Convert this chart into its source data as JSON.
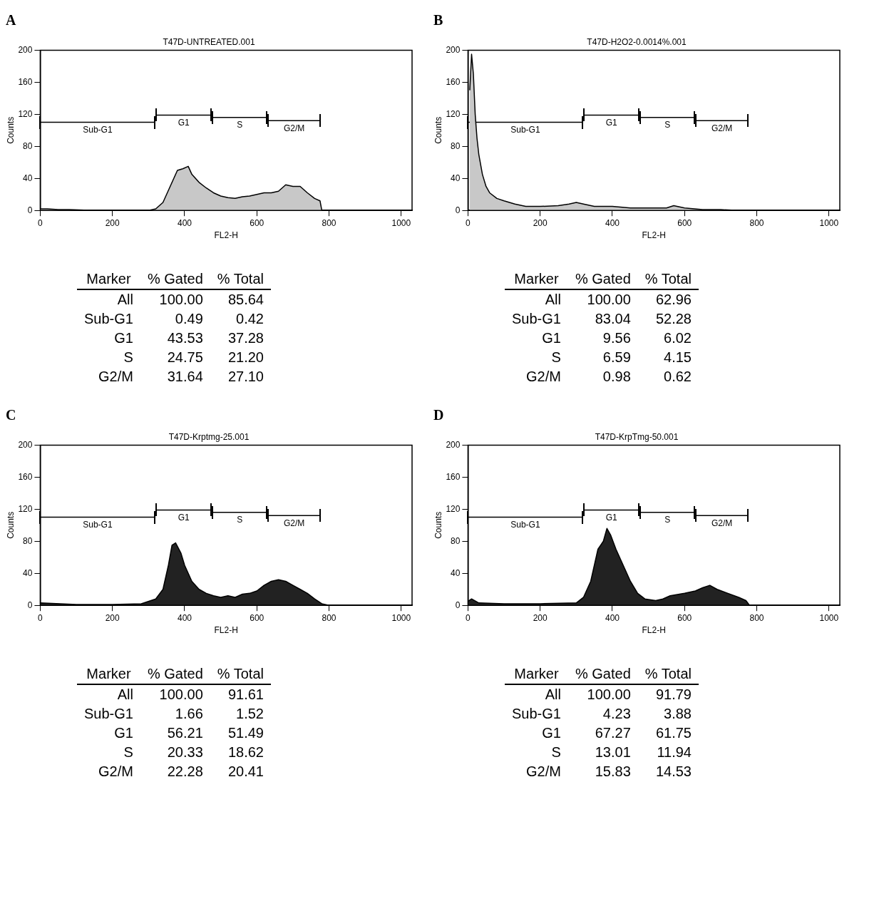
{
  "chart_data": [
    {
      "type": "area",
      "title": "A",
      "subtitle": "T47D-UNTREATED.001",
      "xlabel": "FL2-H",
      "ylabel": "Counts",
      "xlim": [
        0,
        1030
      ],
      "ylim": [
        0,
        200
      ],
      "xticks": [
        0,
        200,
        400,
        600,
        800,
        1000
      ],
      "yticks": [
        0,
        40,
        80,
        120,
        160,
        200
      ],
      "grid": false,
      "legend": false,
      "x": [
        0,
        20,
        50,
        80,
        150,
        250,
        300,
        320,
        340,
        360,
        380,
        395,
        410,
        420,
        440,
        460,
        480,
        500,
        520,
        540,
        560,
        580,
        600,
        620,
        640,
        660,
        680,
        700,
        720,
        740,
        760,
        775,
        780,
        1000
      ],
      "series": [
        {
          "color": "#c8c8c8",
          "values": [
            2,
            2,
            1,
            1,
            0,
            0,
            0,
            2,
            10,
            30,
            50,
            52,
            55,
            45,
            35,
            28,
            22,
            18,
            16,
            15,
            17,
            18,
            20,
            22,
            22,
            24,
            32,
            30,
            30,
            22,
            15,
            12,
            0,
            0
          ]
        },
        {
          "type": "line",
          "name": "Sub-G1",
          "color": "#000000",
          "x": [
            0,
            318
          ],
          "values": [
            110,
            110
          ]
        },
        {
          "type": "line",
          "name": "G1",
          "color": "#000000",
          "x": [
            322,
            473
          ],
          "values": [
            119,
            119
          ]
        },
        {
          "type": "line",
          "name": "S",
          "color": "#000000",
          "x": [
            477,
            628
          ],
          "values": [
            116,
            116
          ]
        },
        {
          "type": "line",
          "name": "G2/M",
          "color": "#000000",
          "x": [
            632,
            775
          ],
          "values": [
            112,
            112
          ]
        }
      ],
      "annotations": [
        "Marker",
        "% Gated",
        "% Total",
        "All",
        "100.00",
        "85.64",
        "Sub-G1",
        "0.49",
        "0.42",
        "G1",
        "43.53",
        "37.28",
        "S",
        "24.75",
        "21.20",
        "G2/M",
        "31.64",
        "27.10"
      ]
    },
    {
      "type": "area",
      "title": "B",
      "subtitle": "T47D-H2O2-0.0014%.001",
      "xlabel": "FL2-H",
      "ylabel": "Counts",
      "xlim": [
        0,
        1030
      ],
      "ylim": [
        0,
        200
      ],
      "xticks": [
        0,
        200,
        400,
        600,
        800,
        1000
      ],
      "yticks": [
        0,
        40,
        80,
        120,
        160,
        200
      ],
      "grid": false,
      "legend": false,
      "x": [
        5,
        10,
        15,
        20,
        25,
        30,
        40,
        50,
        60,
        80,
        100,
        130,
        160,
        200,
        250,
        280,
        300,
        320,
        350,
        400,
        450,
        500,
        550,
        570,
        600,
        650,
        700,
        750,
        800,
        1000
      ],
      "series": [
        {
          "color": "#c8c8c8",
          "values": [
            150,
            195,
            170,
            120,
            90,
            70,
            45,
            30,
            22,
            15,
            12,
            8,
            5,
            5,
            6,
            8,
            10,
            8,
            5,
            5,
            3,
            3,
            3,
            6,
            3,
            1,
            1,
            0,
            0,
            0
          ]
        },
        {
          "type": "line",
          "name": "Sub-G1",
          "color": "#000000",
          "x": [
            0,
            318
          ],
          "values": [
            110,
            110
          ]
        },
        {
          "type": "line",
          "name": "G1",
          "color": "#000000",
          "x": [
            322,
            473
          ],
          "values": [
            119,
            119
          ]
        },
        {
          "type": "line",
          "name": "S",
          "color": "#000000",
          "x": [
            477,
            628
          ],
          "values": [
            116,
            116
          ]
        },
        {
          "type": "line",
          "name": "G2/M",
          "color": "#000000",
          "x": [
            632,
            775
          ],
          "values": [
            112,
            112
          ]
        }
      ],
      "annotations": [
        "Marker",
        "% Gated",
        "% Total",
        "All",
        "100.00",
        "62.96",
        "Sub-G1",
        "83.04",
        "52.28",
        "G1",
        "9.56",
        "6.02",
        "S",
        "6.59",
        "4.15",
        "G2/M",
        "0.98",
        "0.62"
      ]
    },
    {
      "type": "area",
      "title": "C",
      "subtitle": "T47D-Krptmg-25.001",
      "xlabel": "FL2-H",
      "ylabel": "Counts",
      "xlim": [
        0,
        1030
      ],
      "ylim": [
        0,
        200
      ],
      "xticks": [
        0,
        200,
        400,
        600,
        800,
        1000
      ],
      "yticks": [
        0,
        40,
        80,
        120,
        160,
        200
      ],
      "grid": false,
      "legend": false,
      "x": [
        0,
        100,
        200,
        280,
        320,
        340,
        355,
        365,
        375,
        390,
        400,
        420,
        440,
        460,
        480,
        500,
        520,
        540,
        560,
        580,
        600,
        620,
        640,
        660,
        680,
        700,
        720,
        740,
        760,
        780,
        800,
        1000
      ],
      "series": [
        {
          "color": "#222222",
          "values": [
            3,
            1,
            1,
            2,
            8,
            20,
            50,
            75,
            78,
            65,
            50,
            30,
            20,
            15,
            12,
            10,
            12,
            10,
            14,
            15,
            18,
            25,
            30,
            32,
            30,
            25,
            20,
            15,
            8,
            2,
            0,
            0
          ]
        },
        {
          "type": "line",
          "name": "Sub-G1",
          "color": "#000000",
          "x": [
            0,
            318
          ],
          "values": [
            110,
            110
          ]
        },
        {
          "type": "line",
          "name": "G1",
          "color": "#000000",
          "x": [
            322,
            473
          ],
          "values": [
            119,
            119
          ]
        },
        {
          "type": "line",
          "name": "S",
          "color": "#000000",
          "x": [
            477,
            628
          ],
          "values": [
            116,
            116
          ]
        },
        {
          "type": "line",
          "name": "G2/M",
          "color": "#000000",
          "x": [
            632,
            775
          ],
          "values": [
            112,
            112
          ]
        }
      ],
      "annotations": [
        "Marker",
        "% Gated",
        "% Total",
        "All",
        "100.00",
        "91.61",
        "Sub-G1",
        "1.66",
        "1.52",
        "G1",
        "56.21",
        "51.49",
        "S",
        "20.33",
        "18.62",
        "G2/M",
        "22.28",
        "20.41"
      ]
    },
    {
      "type": "area",
      "title": "D",
      "subtitle": "T47D-KrpTmg-50.001",
      "xlabel": "FL2-H",
      "ylabel": "Counts",
      "xlim": [
        0,
        1030
      ],
      "ylim": [
        0,
        200
      ],
      "xticks": [
        0,
        200,
        400,
        600,
        800,
        1000
      ],
      "yticks": [
        0,
        40,
        80,
        120,
        160,
        200
      ],
      "grid": false,
      "legend": false,
      "x": [
        0,
        10,
        30,
        100,
        200,
        300,
        320,
        340,
        360,
        375,
        385,
        395,
        410,
        430,
        450,
        470,
        490,
        520,
        540,
        560,
        600,
        630,
        650,
        670,
        690,
        720,
        750,
        770,
        780,
        1000
      ],
      "series": [
        {
          "color": "#222222",
          "values": [
            5,
            8,
            3,
            2,
            2,
            3,
            10,
            30,
            70,
            80,
            96,
            88,
            70,
            50,
            30,
            15,
            8,
            6,
            8,
            12,
            15,
            18,
            22,
            25,
            20,
            15,
            10,
            6,
            0,
            0
          ]
        },
        {
          "type": "line",
          "name": "Sub-G1",
          "color": "#000000",
          "x": [
            0,
            318
          ],
          "values": [
            110,
            110
          ]
        },
        {
          "type": "line",
          "name": "G1",
          "color": "#000000",
          "x": [
            322,
            473
          ],
          "values": [
            119,
            119
          ]
        },
        {
          "type": "line",
          "name": "S",
          "color": "#000000",
          "x": [
            477,
            628
          ],
          "values": [
            116,
            116
          ]
        },
        {
          "type": "line",
          "name": "G2/M",
          "color": "#000000",
          "x": [
            632,
            775
          ],
          "values": [
            112,
            112
          ]
        }
      ],
      "annotations": [
        "Marker",
        "% Gated",
        "% Total",
        "All",
        "100.00",
        "91.79",
        "Sub-G1",
        "4.23",
        "3.88",
        "G1",
        "67.27",
        "61.75",
        "S",
        "13.01",
        "11.94",
        "G2/M",
        "15.83",
        "14.53"
      ]
    }
  ]
}
